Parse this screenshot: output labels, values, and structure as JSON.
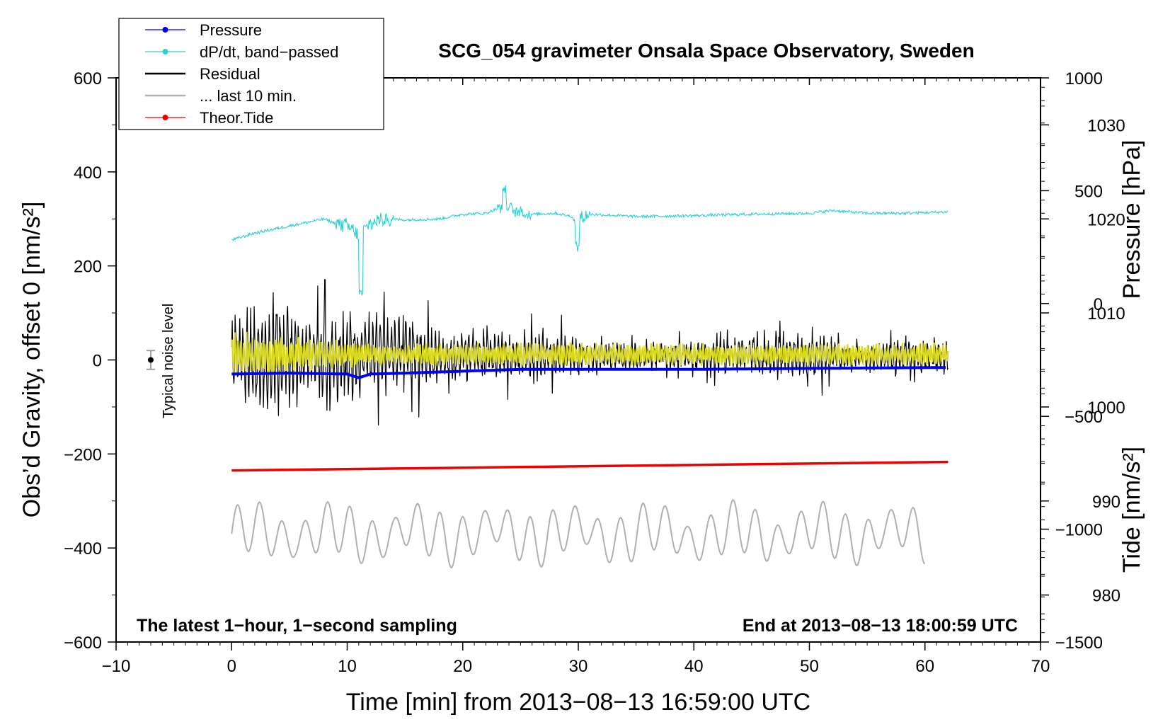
{
  "chart_data": {
    "type": "line",
    "title": "SCG_054 gravimeter Onsala Space Observatory, Sweden",
    "xlabel": "Time [min] from 2013−08−13 16:59:00 UTC",
    "ylabel_left": "Obs’d Gravity, offset 0 [nm/s²]",
    "ylabel_right_pressure": "Pressure [hPa]",
    "ylabel_right_tide": "Tide [nm/s²]",
    "xlim": [
      -10,
      70
    ],
    "ylim_left": [
      -600,
      600
    ],
    "ylim_right_pressure": [
      975,
      1035
    ],
    "ylim_right_tide": [
      -1500,
      1000
    ],
    "x_ticks": [
      "−10",
      "0",
      "10",
      "20",
      "30",
      "40",
      "50",
      "60",
      "70"
    ],
    "y_ticks_left": [
      "600",
      "400",
      "200",
      "0",
      "−200",
      "−400",
      "−600"
    ],
    "y_ticks_pressure": [
      "1030",
      "1020",
      "1010",
      "1000",
      "990",
      "980"
    ],
    "y_ticks_tide": [
      "1000",
      "500",
      "0",
      "−500",
      "−1000",
      "−1500"
    ],
    "note_left": "The latest 1−hour, 1−second sampling",
    "note_right": "End at 2013−08−13 18:00:59 UTC",
    "noise_label": "Typical noise level",
    "noise_level": {
      "x": -7,
      "y": 0,
      "err": 20
    },
    "legend": [
      {
        "label": "Pressure",
        "color": "#0000ee",
        "marker": "dot"
      },
      {
        "label": "dP/dt, band−passed",
        "color": "#2fd0d0",
        "marker": "dot"
      },
      {
        "label": "Residual",
        "color": "#000000",
        "marker": "none"
      },
      {
        "label": "... last 10 min.",
        "color": "#b0b0b0",
        "marker": "none"
      },
      {
        "label": "Theor.Tide",
        "color": "#ee0000",
        "marker": "dot"
      }
    ],
    "series": [
      {
        "name": "Pressure",
        "axis": "pressure",
        "color": "#0000ee",
        "x": [
          0,
          5,
          10,
          11,
          12,
          15,
          20,
          25,
          30,
          40,
          50,
          62
        ],
        "values": [
          1003.5,
          1003.6,
          1003.5,
          1003.1,
          1003.5,
          1003.6,
          1003.8,
          1004.0,
          1004.0,
          1004.0,
          1004.1,
          1004.2
        ]
      },
      {
        "name": "dP/dt, band−passed",
        "axis": "left",
        "color": "#2fd0d0",
        "x": [
          0,
          2,
          5,
          8,
          9,
          10,
          11,
          12,
          13,
          15,
          18,
          20,
          22,
          23.8,
          24.5,
          26,
          28,
          29.5,
          30,
          31,
          35,
          40,
          45,
          50,
          52,
          55,
          58,
          62
        ],
        "values": [
          255,
          270,
          285,
          300,
          290,
          285,
          265,
          290,
          300,
          298,
          300,
          310,
          312,
          330,
          315,
          310,
          312,
          305,
          300,
          310,
          305,
          307,
          310,
          312,
          318,
          312,
          312,
          315
        ]
      },
      {
        "name": "Theor.Tide",
        "axis": "left",
        "color": "#ee0000",
        "x": [
          0,
          62
        ],
        "values": [
          -235,
          -217
        ]
      }
    ],
    "residual": {
      "color": "#000000",
      "x_range": [
        0,
        62
      ],
      "envelope": {
        "x": [
          0,
          3,
          4,
          6,
          10,
          11,
          15,
          18,
          24,
          28,
          32,
          38,
          46,
          47,
          55,
          62
        ],
        "amplitude": [
          110,
          210,
          190,
          130,
          160,
          140,
          130,
          80,
          90,
          70,
          50,
          45,
          60,
          80,
          55,
          55
        ]
      }
    },
    "last_10_min": {
      "color": "#d8d820",
      "x_range": [
        0,
        62
      ],
      "amplitude": [
        55,
        25
      ]
    },
    "prior_hour": {
      "color": "#b0b0b0",
      "x_range": [
        0,
        60
      ],
      "center": -370,
      "amplitude": 55
    }
  }
}
